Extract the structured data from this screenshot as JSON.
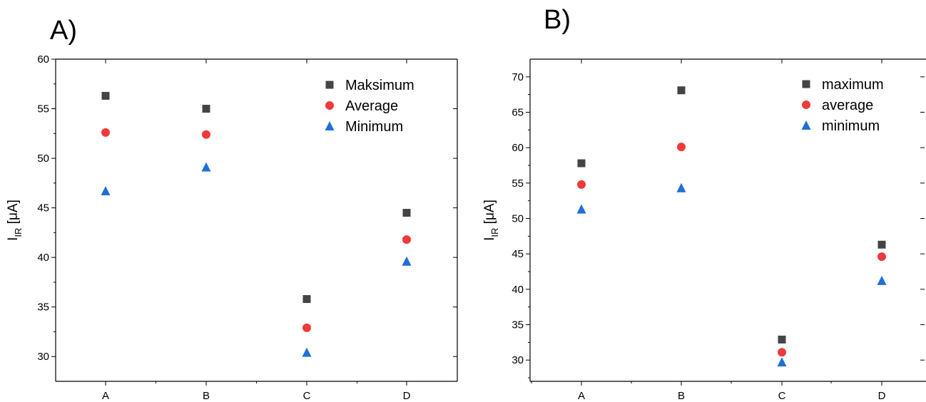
{
  "colors": {
    "maximum": "#444444",
    "average": "#ee3a3a",
    "minimum": "#1f6fd6",
    "axis": "#000000"
  },
  "chart_data": [
    {
      "type": "scatter",
      "panel_label": "A)",
      "categories": [
        "A",
        "B",
        "C",
        "D"
      ],
      "ylabel_main": "I",
      "ylabel_sub": "IR",
      "ylabel_unit": " [μA]",
      "ylim": [
        27.5,
        60
      ],
      "yticks": [
        30,
        35,
        40,
        45,
        50,
        55,
        60
      ],
      "grid": false,
      "legend_position": "top-right",
      "series": [
        {
          "name": "Maksimum",
          "marker": "square",
          "color_key": "maximum",
          "values": [
            56.3,
            55.0,
            35.8,
            44.5
          ]
        },
        {
          "name": "Average",
          "marker": "circle",
          "color_key": "average",
          "values": [
            52.6,
            52.4,
            32.9,
            41.8
          ]
        },
        {
          "name": "Minimum",
          "marker": "triangle",
          "color_key": "minimum",
          "values": [
            46.7,
            49.1,
            30.4,
            39.6
          ]
        }
      ]
    },
    {
      "type": "scatter",
      "panel_label": "B)",
      "categories": [
        "A",
        "B",
        "C",
        "D"
      ],
      "ylabel_main": "I",
      "ylabel_sub": "IR",
      "ylabel_unit": " [μA]",
      "ylim": [
        27,
        72.5
      ],
      "yticks": [
        30,
        35,
        40,
        45,
        50,
        55,
        60,
        65,
        70
      ],
      "grid": false,
      "legend_position": "top-right",
      "series": [
        {
          "name": "maximum",
          "marker": "square",
          "color_key": "maximum",
          "values": [
            57.8,
            68.1,
            32.9,
            46.3
          ]
        },
        {
          "name": "average",
          "marker": "circle",
          "color_key": "average",
          "values": [
            54.8,
            60.1,
            31.1,
            44.6
          ]
        },
        {
          "name": "minimum",
          "marker": "triangle",
          "color_key": "minimum",
          "values": [
            51.3,
            54.3,
            29.7,
            41.2
          ]
        }
      ]
    }
  ]
}
